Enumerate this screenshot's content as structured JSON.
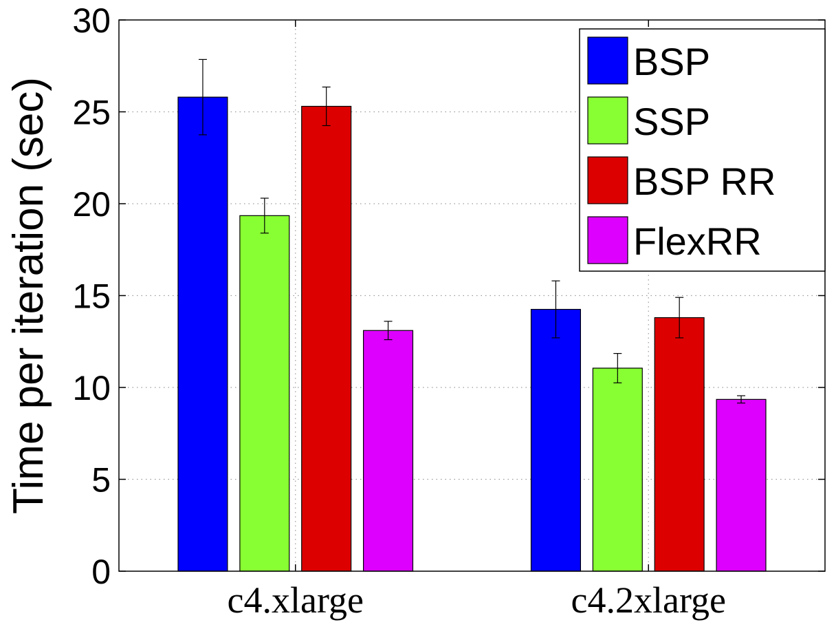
{
  "chart_data": {
    "type": "bar",
    "title": "",
    "xlabel": "",
    "ylabel": "Time per iteration (sec)",
    "ylim": [
      0,
      30
    ],
    "yticks": [
      0,
      5,
      10,
      15,
      20,
      25,
      30
    ],
    "grid": true,
    "legend_position": "top-right",
    "categories": [
      "c4.xlarge",
      "c4.2xlarge"
    ],
    "series": [
      {
        "name": "BSP",
        "color": "#0000ff",
        "values": [
          25.8,
          14.25
        ],
        "error": [
          2.05,
          1.55
        ]
      },
      {
        "name": "SSP",
        "color": "#88ff33",
        "values": [
          19.35,
          11.05
        ],
        "error": [
          0.95,
          0.8
        ]
      },
      {
        "name": "BSP RR",
        "color": "#dd0000",
        "values": [
          25.3,
          13.8
        ],
        "error": [
          1.05,
          1.1
        ]
      },
      {
        "name": "FlexRR",
        "color": "#dd00ff",
        "values": [
          13.1,
          9.35
        ],
        "error": [
          0.5,
          0.2
        ]
      }
    ]
  }
}
